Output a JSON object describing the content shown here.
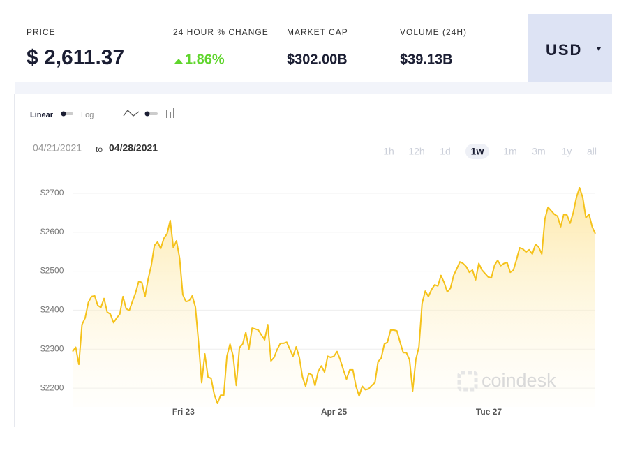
{
  "header": {
    "price": {
      "label": "PRICE",
      "value": "$ 2,611.37"
    },
    "change": {
      "label": "24 HOUR % CHANGE",
      "value": "1.86%"
    },
    "market_cap": {
      "label": "MARKET CAP",
      "value": "$302.00B"
    },
    "volume": {
      "label": "VOLUME (24H)",
      "value": "$39.13B"
    },
    "currency": "USD"
  },
  "controls": {
    "linear": "Linear",
    "log": "Log",
    "date_from": "04/21/2021",
    "date_sep": "to",
    "date_to": "04/28/2021",
    "ranges": [
      "1h",
      "12h",
      "1d",
      "1w",
      "1m",
      "3m",
      "1y",
      "all"
    ],
    "selected_range": 3
  },
  "watermark": "coindesk",
  "chart_data": {
    "type": "line",
    "color": "#f5c21b",
    "grid": true,
    "ylim": [
      2152,
      2748
    ],
    "yticks": [
      {
        "value": 2200,
        "label": "$2200"
      },
      {
        "value": 2300,
        "label": "$2300"
      },
      {
        "value": 2400,
        "label": "$2400"
      },
      {
        "value": 2500,
        "label": "$2500"
      },
      {
        "value": 2600,
        "label": "$2600"
      },
      {
        "value": 2700,
        "label": "$2700"
      }
    ],
    "xlim": [
      0,
      166
    ],
    "xticks": [
      {
        "value": 35.2,
        "label": "Fri 23"
      },
      {
        "value": 83,
        "label": "Apr 25"
      },
      {
        "value": 132.2,
        "label": "Tue 27"
      }
    ],
    "values": [
      2294,
      2305,
      2261,
      2363,
      2380,
      2420,
      2435,
      2437,
      2412,
      2407,
      2430,
      2395,
      2390,
      2368,
      2380,
      2390,
      2435,
      2404,
      2399,
      2422,
      2444,
      2474,
      2471,
      2435,
      2480,
      2515,
      2566,
      2575,
      2558,
      2584,
      2596,
      2630,
      2560,
      2578,
      2533,
      2440,
      2422,
      2424,
      2437,
      2408,
      2318,
      2214,
      2288,
      2229,
      2225,
      2184,
      2161,
      2182,
      2182,
      2282,
      2313,
      2282,
      2207,
      2304,
      2313,
      2343,
      2300,
      2354,
      2352,
      2349,
      2336,
      2324,
      2363,
      2270,
      2279,
      2300,
      2315,
      2315,
      2318,
      2300,
      2282,
      2306,
      2279,
      2229,
      2205,
      2238,
      2234,
      2207,
      2243,
      2257,
      2241,
      2282,
      2279,
      2282,
      2294,
      2273,
      2247,
      2223,
      2247,
      2247,
      2205,
      2180,
      2205,
      2196,
      2198,
      2207,
      2214,
      2268,
      2277,
      2313,
      2318,
      2349,
      2349,
      2347,
      2318,
      2291,
      2291,
      2273,
      2193,
      2273,
      2306,
      2417,
      2449,
      2435,
      2453,
      2465,
      2462,
      2489,
      2471,
      2447,
      2456,
      2489,
      2506,
      2524,
      2520,
      2512,
      2497,
      2503,
      2478,
      2520,
      2503,
      2494,
      2485,
      2483,
      2515,
      2528,
      2514,
      2520,
      2522,
      2497,
      2503,
      2530,
      2560,
      2557,
      2549,
      2555,
      2544,
      2569,
      2562,
      2544,
      2634,
      2664,
      2655,
      2646,
      2641,
      2614,
      2646,
      2644,
      2623,
      2650,
      2689,
      2714,
      2689,
      2637,
      2646,
      2614,
      2596
    ]
  }
}
